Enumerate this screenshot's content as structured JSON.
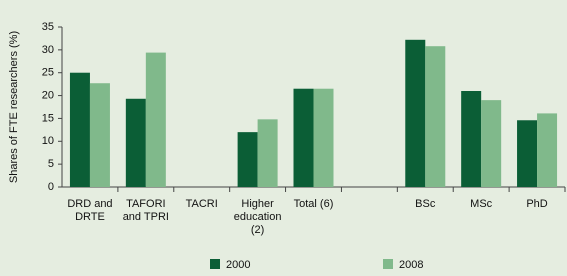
{
  "chart_data": {
    "type": "bar",
    "ylabel": "Shares of FTE researchers (%)",
    "categories": [
      "DRD and DRTE",
      "TAFORI and TPRI",
      "TACRI",
      "Higher education (2)",
      "Total (6)",
      null,
      "BSc",
      "MSc",
      "PhD"
    ],
    "series": [
      {
        "name": "2000",
        "color": "#0b5e36",
        "values": [
          25,
          19.3,
          null,
          12,
          21.5,
          null,
          32.2,
          21,
          14.6
        ]
      },
      {
        "name": "2008",
        "color": "#80b98b",
        "values": [
          22.7,
          29.4,
          null,
          14.8,
          21.5,
          null,
          30.8,
          19,
          16.1
        ]
      }
    ],
    "ylim": [
      0,
      35
    ],
    "yticks": [
      0,
      5,
      10,
      15,
      20,
      25,
      30,
      35
    ]
  }
}
